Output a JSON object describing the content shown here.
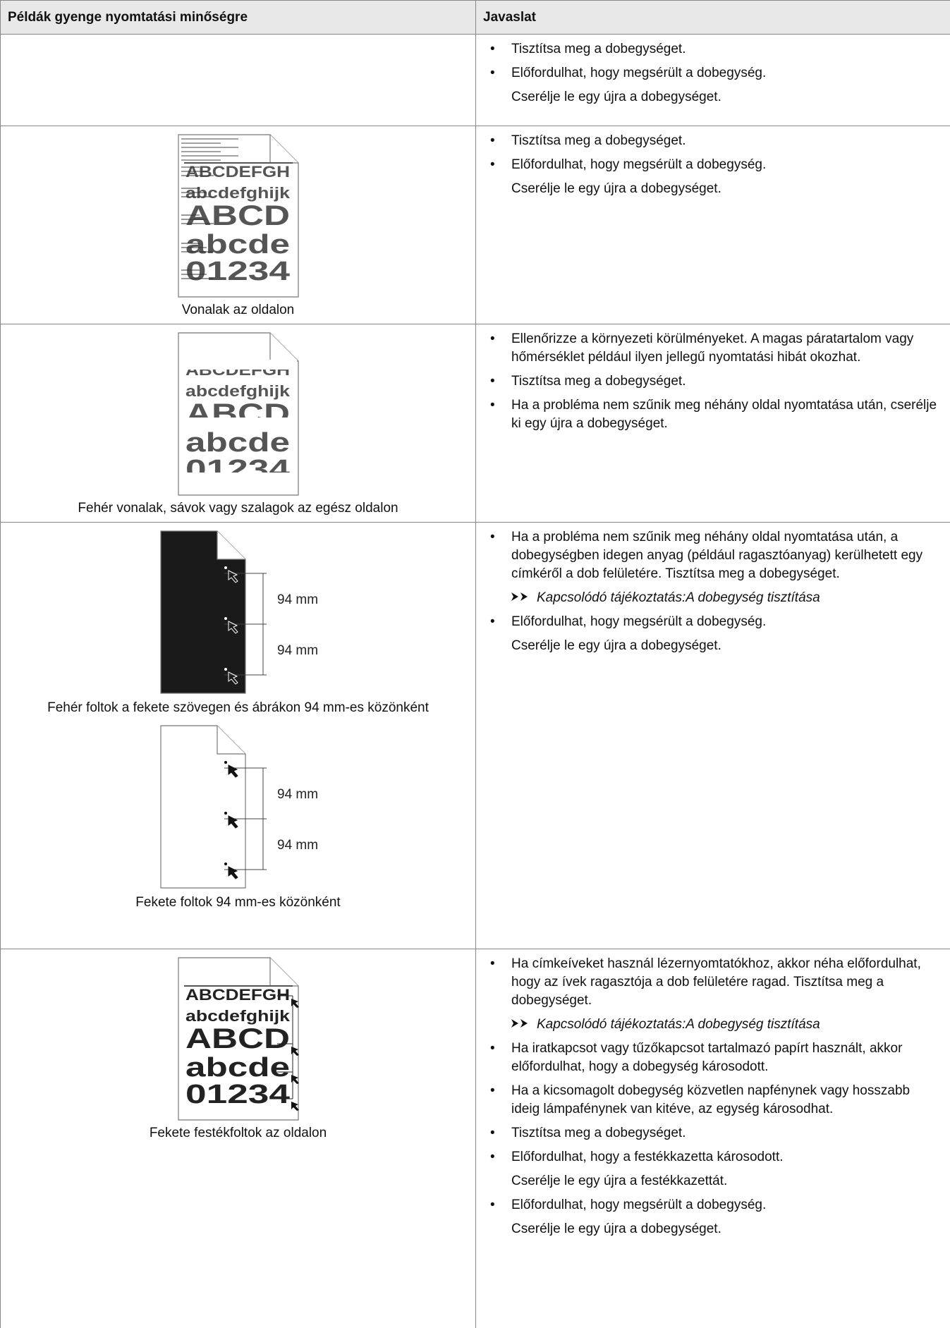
{
  "table": {
    "header": [
      "Példák gyenge nyomtatási minőségre",
      "Javaslat"
    ],
    "rows": [
      {
        "examples": [],
        "suggestions": [
          {
            "text": "Tisztítsa meg a dobegységet."
          },
          {
            "text": "Előfordulhat, hogy megsérült a dobegység.",
            "extra": "Cserélje le egy újra a dobegységet."
          }
        ]
      },
      {
        "examples": [
          {
            "style": "lines",
            "texts": [
              "ABCDEFGH",
              "abcdefghijk",
              "ABCD",
              "abcde",
              "01234"
            ],
            "caption": "Vonalak az oldalon"
          }
        ],
        "suggestions": [
          {
            "text": "Tisztítsa meg a dobegységet."
          },
          {
            "text": "Előfordulhat, hogy megsérült a dobegység.",
            "extra": "Cserélje le egy újra a dobegységet."
          }
        ]
      },
      {
        "examples": [
          {
            "style": "faded",
            "texts": [
              "ABCDEFGH",
              "abcdefghijk",
              "ABCD",
              "abcde",
              "01234"
            ],
            "caption": "Fehér vonalak, sávok vagy szalagok az egész oldalon"
          }
        ],
        "suggestions": [
          {
            "text": "Ellenőrizze a környezeti körülményeket. A magas páratartalom vagy hőmérséklet például ilyen jellegű nyomtatási hibát okozhat."
          },
          {
            "text": "Tisztítsa meg a dobegységet."
          },
          {
            "text": "Ha a probléma nem szűnik meg néhány oldal nyomtatása után, cserélje ki egy újra a dobegységet."
          }
        ]
      },
      {
        "examples": [
          {
            "style": "white-spots",
            "marks": [
              "94 mm",
              "94 mm"
            ],
            "caption": "Fehér foltok a fekete szövegen és ábrákon 94 mm-es közönként"
          },
          {
            "style": "black-spots",
            "marks": [
              "94 mm",
              "94 mm"
            ],
            "caption": "Fekete foltok 94 mm-es közönként"
          }
        ],
        "suggestions": [
          {
            "text": "Ha a probléma nem szűnik meg néhány oldal nyomtatása után, a dobegységben idegen anyag (például ragasztóanyag) kerülhetett egy címkéről a dob felületére. Tisztítsa meg a dobegységet.",
            "link": {
              "label": "Kapcsolódó tájékoztatás:",
              "target": "A dobegység tisztítása"
            }
          },
          {
            "text": "Előfordulhat, hogy megsérült a dobegység.",
            "extra": "Cserélje le egy újra a dobegységet."
          }
        ]
      },
      {
        "examples": [
          {
            "style": "toner",
            "texts": [
              "ABCDEFGH",
              "abcdefghijk",
              "ABCD",
              "abcde",
              "01234"
            ],
            "caption": "Fekete festékfoltok az oldalon"
          }
        ],
        "suggestions": [
          {
            "text": "Ha címkeíveket használ lézernyomtatókhoz, akkor néha előfordulhat, hogy az ívek ragasztója a dob felületére ragad. Tisztítsa meg a dobegységet.",
            "link": {
              "label": "Kapcsolódó tájékoztatás:",
              "target": "A dobegység tisztítása"
            }
          },
          {
            "text": "Ha iratkapcsot vagy tűzőkapcsot tartalmazó papírt használt, akkor előfordulhat, hogy a dobegység károsodott."
          },
          {
            "text": "Ha a kicsomagolt dobegység közvetlen napfénynek vagy hosszabb ideig lámpafénynek van kitéve, az egység károsodhat."
          },
          {
            "text": "Tisztítsa meg a dobegységet."
          },
          {
            "text": "Előfordulhat, hogy a festékkazetta károsodott.",
            "extra": "Cserélje le egy újra a festékkazettát."
          },
          {
            "text": "Előfordulhat, hogy megsérült a dobegység.",
            "extra": "Cserélje le egy újra a dobegységet."
          }
        ]
      }
    ]
  }
}
